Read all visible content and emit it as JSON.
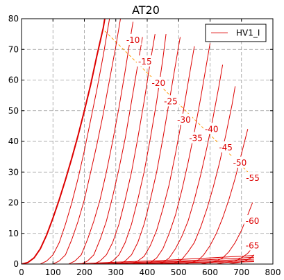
{
  "chart_data": {
    "type": "line",
    "title": "AT20",
    "xlabel": "",
    "ylabel": "",
    "xlim": [
      0,
      800
    ],
    "ylim": [
      0,
      80
    ],
    "x_ticks": [
      0,
      100,
      200,
      300,
      400,
      500,
      600,
      700,
      800
    ],
    "y_ticks": [
      0,
      10,
      20,
      30,
      40,
      50,
      60,
      70,
      80
    ],
    "grid": true,
    "legend": {
      "entries": [
        "HV1_I"
      ],
      "placement": "top-right"
    },
    "colors": {
      "curve": "#dd0000",
      "load_line": "#ff9900",
      "grid": "#999999"
    },
    "series": [
      {
        "grid_volts": 0,
        "label": "",
        "bold": true,
        "points": [
          [
            0,
            0
          ],
          [
            20,
            0.5
          ],
          [
            40,
            2
          ],
          [
            60,
            5
          ],
          [
            80,
            9.5
          ],
          [
            100,
            15
          ],
          [
            120,
            21
          ],
          [
            140,
            27.5
          ],
          [
            160,
            34.5
          ],
          [
            180,
            42
          ],
          [
            200,
            50
          ],
          [
            220,
            58.5
          ],
          [
            240,
            68
          ],
          [
            260,
            77
          ],
          [
            265,
            80
          ]
        ]
      },
      {
        "grid_volts": -5,
        "label": "",
        "points": [
          [
            60,
            0
          ],
          [
            80,
            1
          ],
          [
            100,
            3
          ],
          [
            120,
            7
          ],
          [
            140,
            13
          ],
          [
            160,
            20
          ],
          [
            180,
            28
          ],
          [
            200,
            37
          ],
          [
            220,
            47
          ],
          [
            240,
            57
          ],
          [
            260,
            68
          ],
          [
            280,
            80
          ]
        ]
      },
      {
        "grid_volts": -10,
        "label": "-10",
        "points": [
          [
            100,
            0
          ],
          [
            120,
            1
          ],
          [
            140,
            3
          ],
          [
            160,
            8
          ],
          [
            180,
            14
          ],
          [
            200,
            21
          ],
          [
            220,
            30
          ],
          [
            240,
            39
          ],
          [
            260,
            49
          ],
          [
            280,
            60
          ],
          [
            300,
            71
          ],
          [
            315,
            80
          ]
        ]
      },
      {
        "grid_volts": -15,
        "label": "-15",
        "points": [
          [
            150,
            0
          ],
          [
            170,
            1
          ],
          [
            190,
            3
          ],
          [
            210,
            8
          ],
          [
            230,
            14
          ],
          [
            250,
            21
          ],
          [
            270,
            30
          ],
          [
            290,
            40
          ],
          [
            310,
            51
          ],
          [
            330,
            63
          ],
          [
            350,
            76
          ],
          [
            355,
            79
          ]
        ]
      },
      {
        "grid_volts": -20,
        "label": "-20",
        "points": [
          [
            190,
            0
          ],
          [
            210,
            1
          ],
          [
            230,
            3
          ],
          [
            250,
            8
          ],
          [
            270,
            14
          ],
          [
            290,
            22
          ],
          [
            310,
            31
          ],
          [
            330,
            41
          ],
          [
            350,
            53
          ],
          [
            370,
            65
          ],
          [
            385,
            74
          ]
        ]
      },
      {
        "grid_volts": -25,
        "label": "-25",
        "points": [
          [
            230,
            0
          ],
          [
            250,
            1
          ],
          [
            270,
            3
          ],
          [
            290,
            7
          ],
          [
            310,
            13
          ],
          [
            330,
            21
          ],
          [
            350,
            30
          ],
          [
            370,
            41
          ],
          [
            390,
            53
          ],
          [
            410,
            66
          ],
          [
            425,
            75
          ]
        ]
      },
      {
        "grid_volts": -30,
        "label": "-30",
        "points": [
          [
            270,
            0
          ],
          [
            290,
            1
          ],
          [
            310,
            3
          ],
          [
            330,
            7
          ],
          [
            350,
            13
          ],
          [
            370,
            21
          ],
          [
            390,
            30
          ],
          [
            410,
            41
          ],
          [
            430,
            53
          ],
          [
            450,
            67
          ],
          [
            460,
            75
          ]
        ]
      },
      {
        "grid_volts": -35,
        "label": "-35",
        "points": [
          [
            310,
            0
          ],
          [
            330,
            1
          ],
          [
            350,
            3
          ],
          [
            370,
            7
          ],
          [
            390,
            13
          ],
          [
            410,
            21
          ],
          [
            430,
            30
          ],
          [
            450,
            41
          ],
          [
            470,
            53
          ],
          [
            490,
            65
          ],
          [
            505,
            74
          ]
        ]
      },
      {
        "grid_volts": -40,
        "label": "-40",
        "points": [
          [
            350,
            0
          ],
          [
            370,
            1
          ],
          [
            390,
            2.5
          ],
          [
            410,
            6
          ],
          [
            430,
            11
          ],
          [
            450,
            18
          ],
          [
            470,
            26
          ],
          [
            490,
            36
          ],
          [
            510,
            47
          ],
          [
            530,
            59
          ],
          [
            550,
            71
          ]
        ]
      },
      {
        "grid_volts": -45,
        "label": "-45",
        "points": [
          [
            390,
            0
          ],
          [
            410,
            0.5
          ],
          [
            430,
            2
          ],
          [
            450,
            5
          ],
          [
            470,
            10
          ],
          [
            490,
            16
          ],
          [
            510,
            24
          ],
          [
            530,
            33
          ],
          [
            550,
            43
          ],
          [
            570,
            54
          ],
          [
            590,
            66
          ],
          [
            600,
            72
          ]
        ]
      },
      {
        "grid_volts": -50,
        "label": "-50",
        "points": [
          [
            430,
            0
          ],
          [
            450,
            0.5
          ],
          [
            470,
            2
          ],
          [
            490,
            5
          ],
          [
            510,
            9
          ],
          [
            530,
            14
          ],
          [
            550,
            21
          ],
          [
            570,
            29
          ],
          [
            590,
            38
          ],
          [
            610,
            48
          ],
          [
            630,
            59
          ],
          [
            640,
            65
          ]
        ]
      },
      {
        "grid_volts": -55,
        "label": "-55",
        "points": [
          [
            470,
            0
          ],
          [
            490,
            0.5
          ],
          [
            510,
            1.5
          ],
          [
            530,
            4
          ],
          [
            550,
            7
          ],
          [
            570,
            12
          ],
          [
            590,
            18
          ],
          [
            610,
            25
          ],
          [
            630,
            33
          ],
          [
            650,
            42
          ],
          [
            670,
            52
          ],
          [
            680,
            58
          ]
        ]
      },
      {
        "grid_volts": -60,
        "label": "-60",
        "points": [
          [
            520,
            0
          ],
          [
            540,
            0.5
          ],
          [
            560,
            1
          ],
          [
            580,
            3
          ],
          [
            600,
            6
          ],
          [
            620,
            10
          ],
          [
            640,
            15
          ],
          [
            660,
            21
          ],
          [
            680,
            28
          ],
          [
            700,
            36
          ],
          [
            710,
            40
          ],
          [
            720,
            44
          ]
        ]
      },
      {
        "grid_volts": -65,
        "label": "-65",
        "points": [
          [
            570,
            0
          ],
          [
            600,
            0.5
          ],
          [
            620,
            1
          ],
          [
            640,
            2
          ],
          [
            660,
            4
          ],
          [
            680,
            7
          ],
          [
            700,
            11
          ],
          [
            720,
            16
          ],
          [
            735,
            20
          ]
        ]
      },
      {
        "grid_volts": -70,
        "label": "",
        "points": [
          [
            620,
            0
          ],
          [
            650,
            0.5
          ],
          [
            680,
            1
          ],
          [
            700,
            2
          ],
          [
            720,
            3.5
          ],
          [
            740,
            6
          ]
        ]
      },
      {
        "grid_volts": -75,
        "label": "",
        "points": [
          [
            660,
            0
          ],
          [
            690,
            0.5
          ],
          [
            710,
            1
          ],
          [
            730,
            2
          ],
          [
            740,
            3
          ]
        ]
      }
    ],
    "low_curves": [
      {
        "points": [
          [
            150,
            0
          ],
          [
            300,
            0.6
          ],
          [
            450,
            1.2
          ],
          [
            600,
            2.0
          ],
          [
            740,
            2.8
          ]
        ]
      },
      {
        "points": [
          [
            200,
            0
          ],
          [
            350,
            0.5
          ],
          [
            500,
            1.0
          ],
          [
            650,
            1.7
          ],
          [
            740,
            2.2
          ]
        ]
      },
      {
        "points": [
          [
            250,
            0
          ],
          [
            400,
            0.4
          ],
          [
            550,
            0.9
          ],
          [
            700,
            1.4
          ],
          [
            740,
            1.6
          ]
        ]
      },
      {
        "points": [
          [
            300,
            0
          ],
          [
            450,
            0.3
          ],
          [
            600,
            0.7
          ],
          [
            740,
            1.1
          ]
        ]
      },
      {
        "points": [
          [
            350,
            0
          ],
          [
            500,
            0.25
          ],
          [
            650,
            0.5
          ],
          [
            740,
            0.8
          ]
        ]
      }
    ],
    "load_line": {
      "points": [
        [
          265,
          76
        ],
        [
          760,
          26
        ]
      ]
    },
    "curve_labels": [
      {
        "text": "-10",
        "x": 355,
        "y": 73
      },
      {
        "text": "-15",
        "x": 393,
        "y": 66
      },
      {
        "text": "-20",
        "x": 436,
        "y": 59
      },
      {
        "text": "-25",
        "x": 475,
        "y": 53
      },
      {
        "text": "-30",
        "x": 517,
        "y": 47
      },
      {
        "text": "-35",
        "x": 555,
        "y": 41
      },
      {
        "text": "-40",
        "x": 605,
        "y": 44
      },
      {
        "text": "-45",
        "x": 650,
        "y": 38
      },
      {
        "text": "-50",
        "x": 695,
        "y": 33
      },
      {
        "text": "-55",
        "x": 736,
        "y": 28
      },
      {
        "text": "-60",
        "x": 735,
        "y": 14
      },
      {
        "text": "-65",
        "x": 735,
        "y": 6
      }
    ]
  }
}
